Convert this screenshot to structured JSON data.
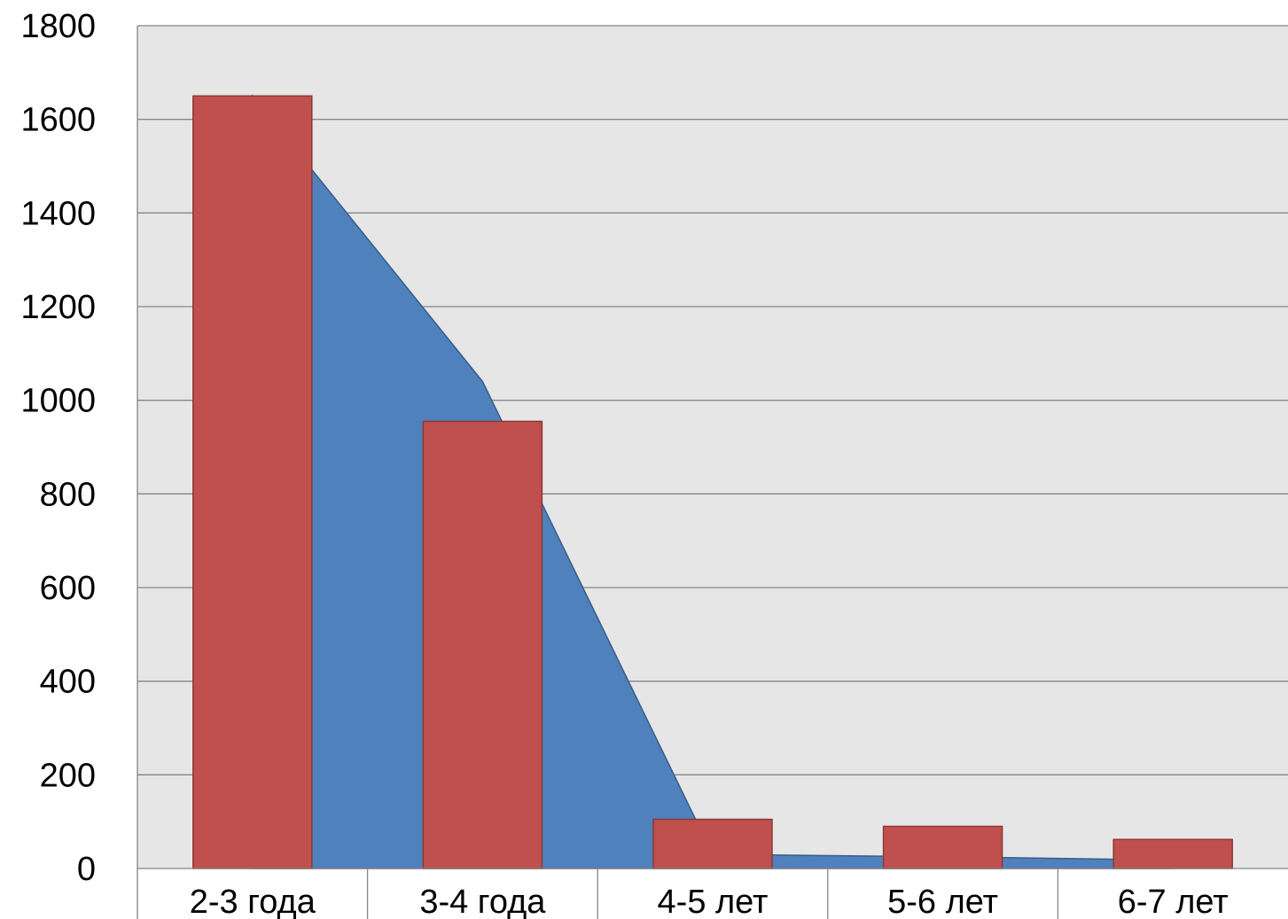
{
  "chart_data": {
    "type": "bar",
    "title": "",
    "xlabel": "",
    "ylabel": "",
    "categories": [
      "2-3 года",
      "3-4 года",
      "4-5 лет",
      "5-6 лет",
      "6-7 лет"
    ],
    "ylim": [
      0,
      1800
    ],
    "yticks": [
      "0",
      "200",
      "400",
      "600",
      "800",
      "1000",
      "1200",
      "1400",
      "1600",
      "1800"
    ],
    "grid": true,
    "legend": "none",
    "series": [
      {
        "type": "area",
        "values": [
          1650,
          1040,
          30,
          25,
          18
        ],
        "color": "#4F81BD"
      },
      {
        "type": "bar",
        "values": [
          1650,
          955,
          105,
          90,
          62
        ],
        "color": "#C0504D"
      }
    ]
  },
  "colors": {
    "plot_background": "#E6E6E6",
    "gridline": "#868686",
    "axis": "#868686",
    "bar_stroke": "#8C3836",
    "area_stroke": "#385D8A"
  }
}
